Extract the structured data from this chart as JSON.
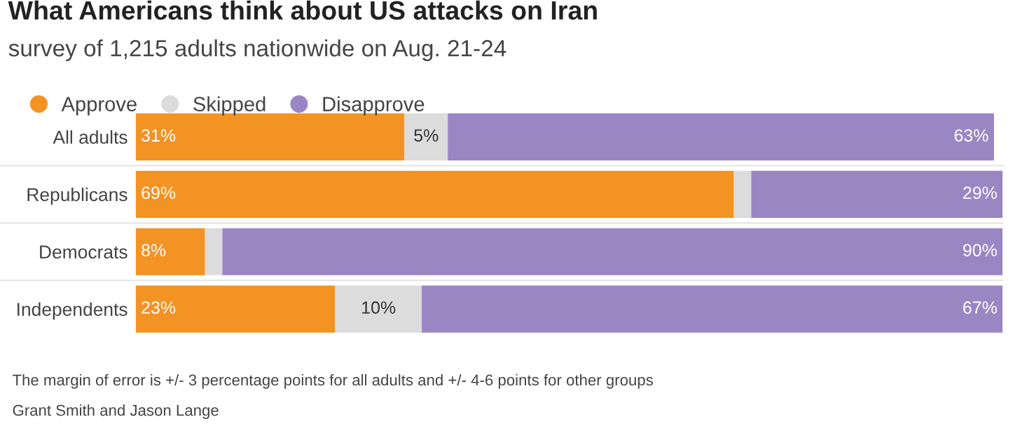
{
  "chart_data": {
    "type": "bar",
    "orientation": "horizontal",
    "stacked": true,
    "title": "What Americans think about US attacks on Iran",
    "subtitle": "survey of 1,215 adults nationwide on Aug. 21-24",
    "categories": [
      "All adults",
      "Republicans",
      "Democrats",
      "Independents"
    ],
    "series": [
      {
        "name": "Approve",
        "color": "#f39323",
        "values": [
          31,
          69,
          8,
          23
        ],
        "value_labels": [
          "31%",
          "69%",
          "8%",
          "23%"
        ]
      },
      {
        "name": "Skipped",
        "color": "#dcdcdc",
        "values": [
          5,
          2,
          2,
          10
        ],
        "value_labels": [
          "5%",
          null,
          null,
          "10%"
        ]
      },
      {
        "name": "Disapprove",
        "color": "#9b86c4",
        "values": [
          63,
          29,
          90,
          67
        ],
        "value_labels": [
          "63%",
          "29%",
          "90%",
          "67%"
        ]
      }
    ],
    "xlim": [
      0,
      100
    ],
    "tick_labels": "y",
    "legend": "top left",
    "grid": false,
    "annotations": [
      "The margin of error is +/- 3 percentage points for all adults and +/- 4-6 points for other groups",
      "Grant Smith and Jason Lange"
    ]
  }
}
